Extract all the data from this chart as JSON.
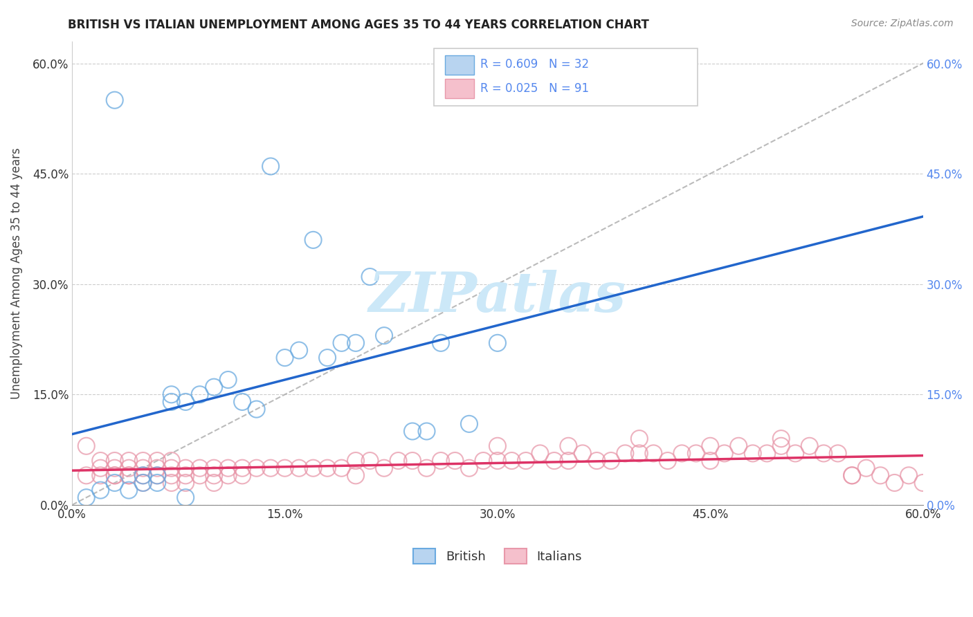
{
  "title": "BRITISH VS ITALIAN UNEMPLOYMENT AMONG AGES 35 TO 44 YEARS CORRELATION CHART",
  "source": "Source: ZipAtlas.com",
  "ylabel": "Unemployment Among Ages 35 to 44 years",
  "xlim": [
    0.0,
    0.6
  ],
  "ylim": [
    0.0,
    0.63
  ],
  "xticks": [
    0.0,
    0.15,
    0.3,
    0.45,
    0.6
  ],
  "yticks": [
    0.0,
    0.15,
    0.3,
    0.45,
    0.6
  ],
  "xticklabels": [
    "0.0%",
    "15.0%",
    "30.0%",
    "45.0%",
    "60.0%"
  ],
  "yticklabels": [
    "0.0%",
    "15.0%",
    "30.0%",
    "45.0%",
    "60.0%"
  ],
  "british_color": "#b8d4f0",
  "italian_color": "#f5c0cc",
  "british_edge": "#6aaae0",
  "italian_edge": "#e898aa",
  "blue_line_color": "#2266cc",
  "pink_line_color": "#dd3366",
  "diag_line_color": "#aaaaaa",
  "right_tick_color": "#5588ee",
  "watermark_color": "#cce8f8",
  "british_x": [
    0.01,
    0.02,
    0.03,
    0.04,
    0.05,
    0.05,
    0.06,
    0.06,
    0.07,
    0.07,
    0.08,
    0.09,
    0.1,
    0.11,
    0.13,
    0.15,
    0.16,
    0.18,
    0.2,
    0.22,
    0.24,
    0.26,
    0.28,
    0.3,
    0.17,
    0.19,
    0.21,
    0.14,
    0.12,
    0.25,
    0.08,
    0.03
  ],
  "british_y": [
    0.01,
    0.02,
    0.03,
    0.02,
    0.03,
    0.04,
    0.04,
    0.03,
    0.14,
    0.15,
    0.14,
    0.15,
    0.16,
    0.17,
    0.13,
    0.2,
    0.21,
    0.2,
    0.22,
    0.23,
    0.1,
    0.22,
    0.11,
    0.22,
    0.36,
    0.22,
    0.31,
    0.46,
    0.14,
    0.1,
    0.01,
    0.55
  ],
  "italian_x": [
    0.01,
    0.01,
    0.02,
    0.02,
    0.02,
    0.03,
    0.03,
    0.03,
    0.03,
    0.04,
    0.04,
    0.04,
    0.04,
    0.05,
    0.05,
    0.05,
    0.05,
    0.06,
    0.06,
    0.06,
    0.07,
    0.07,
    0.07,
    0.07,
    0.08,
    0.08,
    0.08,
    0.09,
    0.09,
    0.1,
    0.1,
    0.1,
    0.11,
    0.11,
    0.12,
    0.12,
    0.13,
    0.14,
    0.15,
    0.16,
    0.17,
    0.18,
    0.19,
    0.2,
    0.2,
    0.21,
    0.22,
    0.23,
    0.24,
    0.25,
    0.26,
    0.27,
    0.28,
    0.29,
    0.3,
    0.31,
    0.32,
    0.33,
    0.34,
    0.35,
    0.36,
    0.37,
    0.38,
    0.39,
    0.4,
    0.41,
    0.42,
    0.43,
    0.44,
    0.45,
    0.46,
    0.47,
    0.48,
    0.49,
    0.5,
    0.51,
    0.52,
    0.53,
    0.54,
    0.55,
    0.56,
    0.57,
    0.58,
    0.59,
    0.6,
    0.3,
    0.35,
    0.4,
    0.45,
    0.5,
    0.55
  ],
  "italian_y": [
    0.08,
    0.04,
    0.05,
    0.04,
    0.06,
    0.05,
    0.04,
    0.06,
    0.04,
    0.05,
    0.04,
    0.06,
    0.04,
    0.05,
    0.04,
    0.06,
    0.03,
    0.05,
    0.04,
    0.06,
    0.05,
    0.04,
    0.06,
    0.03,
    0.05,
    0.04,
    0.03,
    0.05,
    0.04,
    0.05,
    0.04,
    0.03,
    0.05,
    0.04,
    0.05,
    0.04,
    0.05,
    0.05,
    0.05,
    0.05,
    0.05,
    0.05,
    0.05,
    0.06,
    0.04,
    0.06,
    0.05,
    0.06,
    0.06,
    0.05,
    0.06,
    0.06,
    0.05,
    0.06,
    0.06,
    0.06,
    0.06,
    0.07,
    0.06,
    0.06,
    0.07,
    0.06,
    0.06,
    0.07,
    0.07,
    0.07,
    0.06,
    0.07,
    0.07,
    0.06,
    0.07,
    0.08,
    0.07,
    0.07,
    0.08,
    0.07,
    0.08,
    0.07,
    0.07,
    0.04,
    0.05,
    0.04,
    0.03,
    0.04,
    0.03,
    0.08,
    0.08,
    0.09,
    0.08,
    0.09,
    0.04
  ]
}
